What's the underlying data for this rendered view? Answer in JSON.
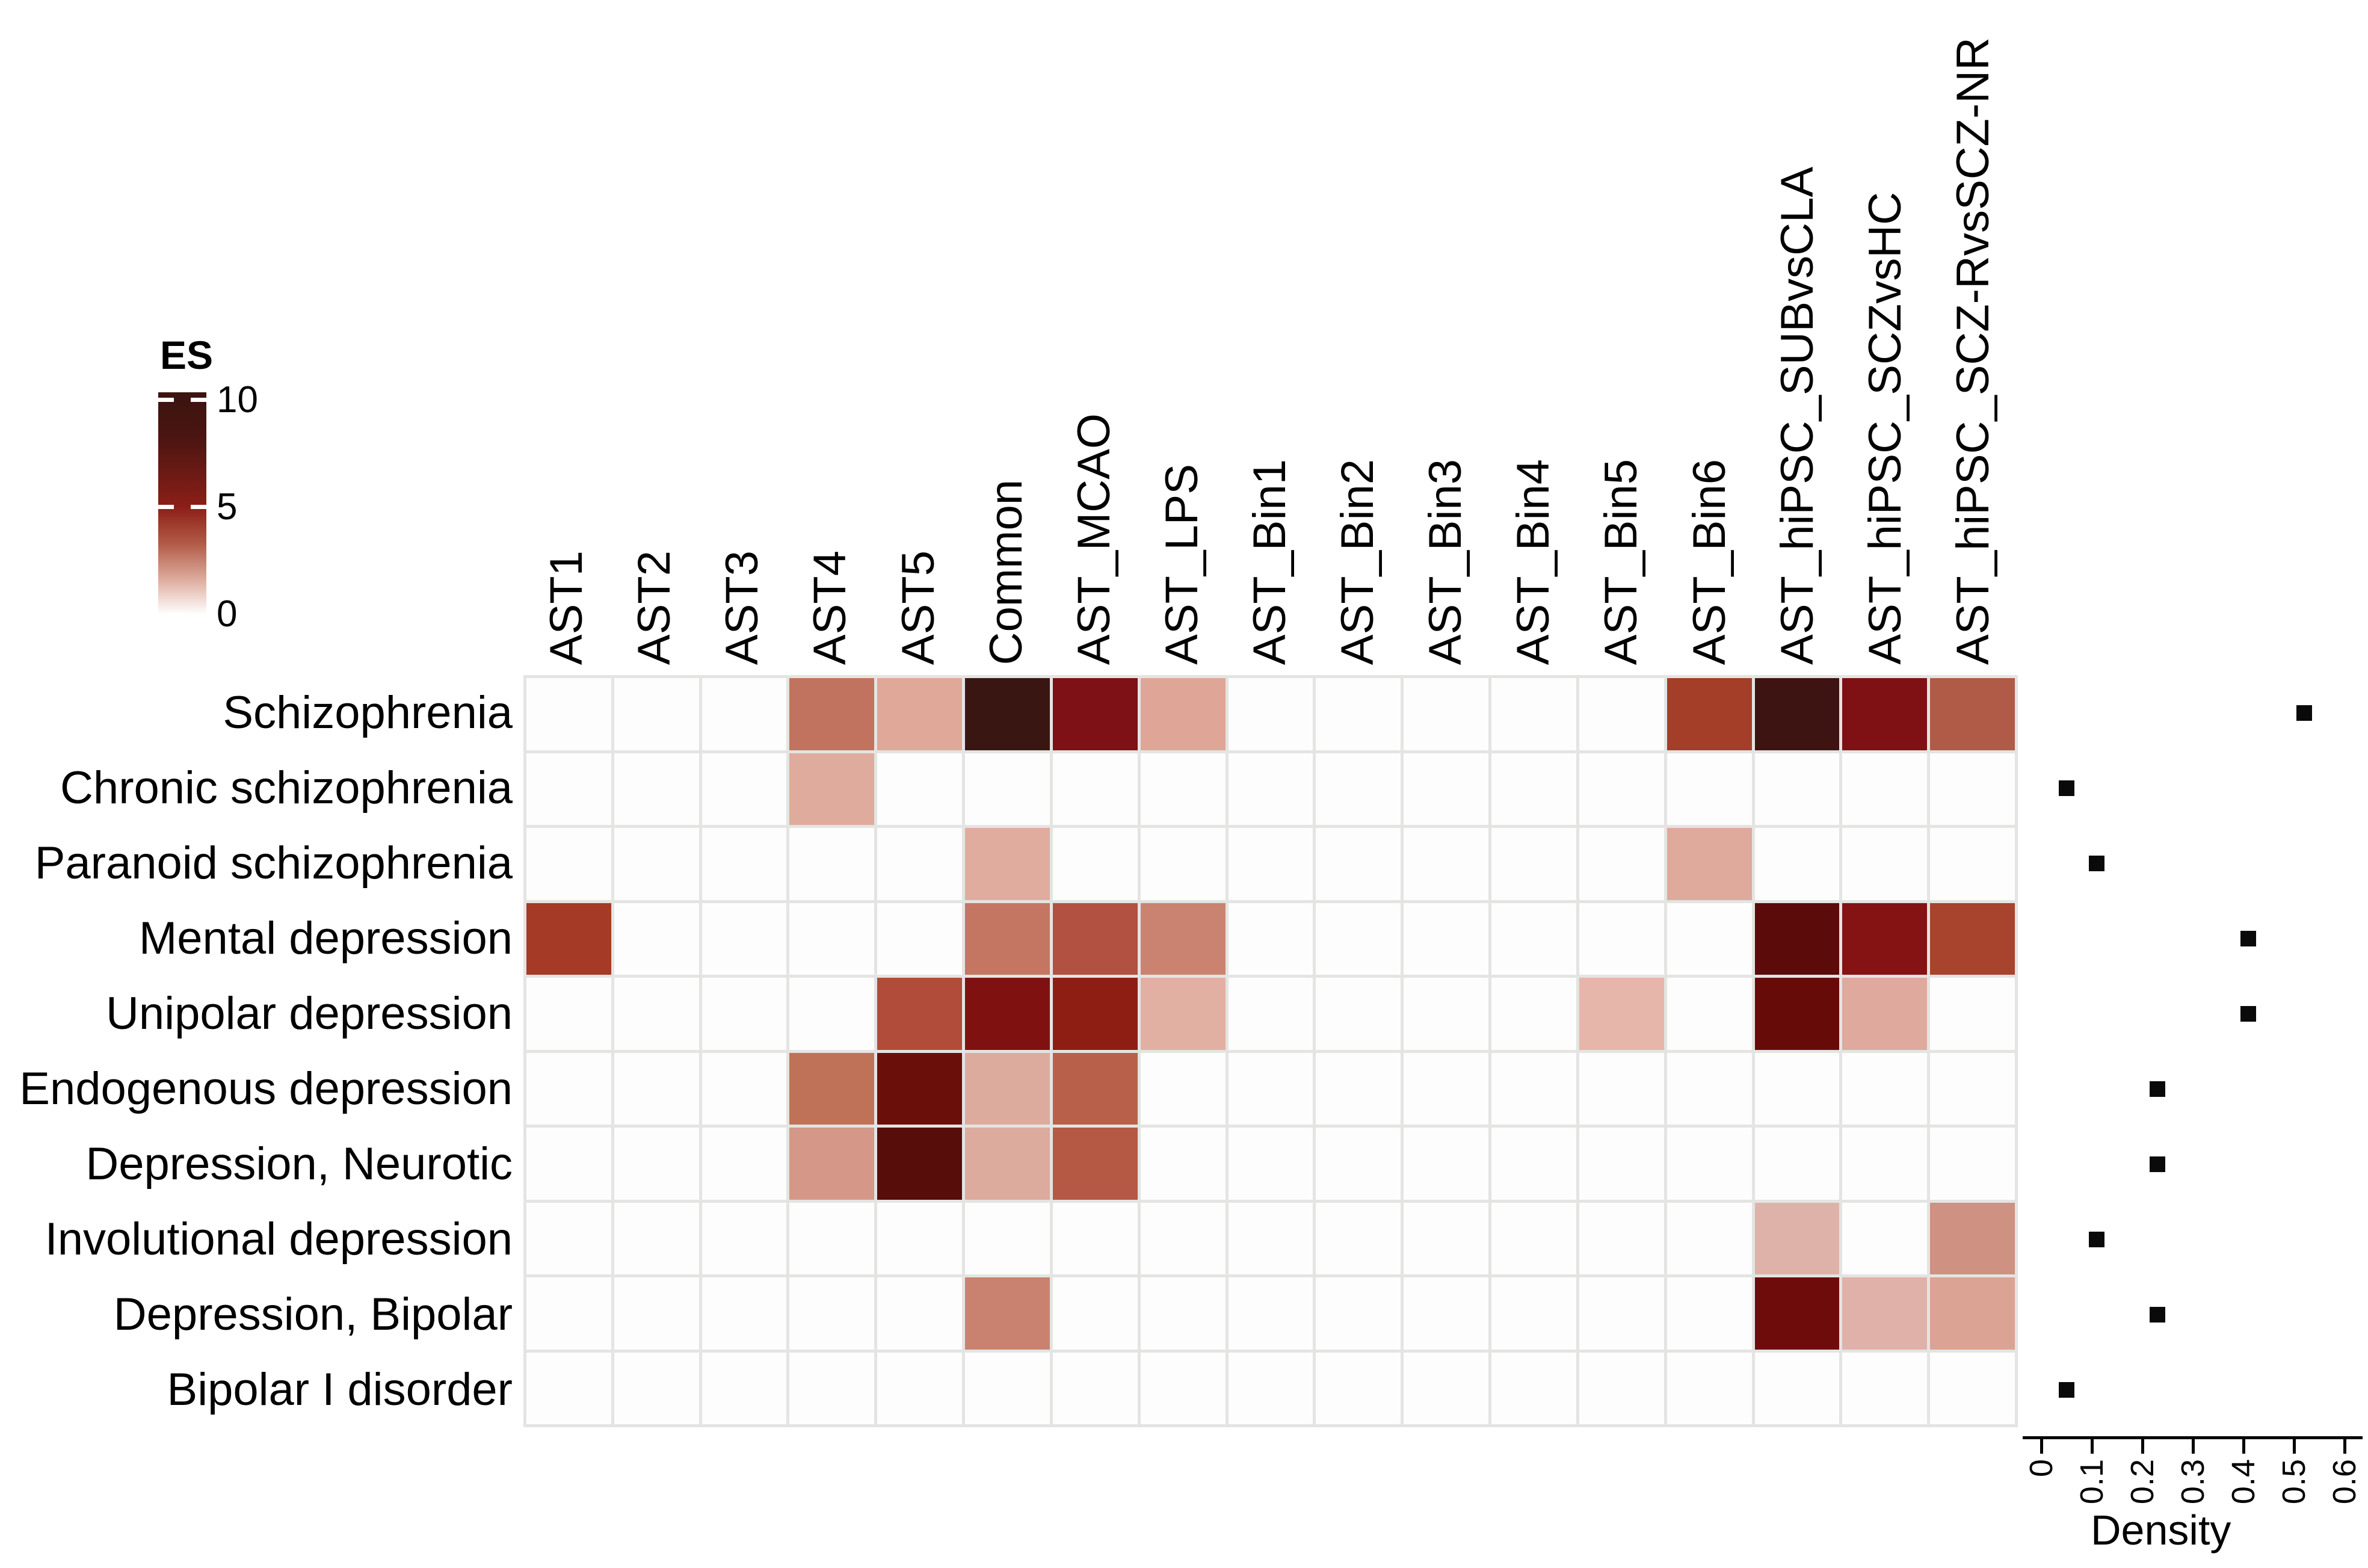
{
  "figure": {
    "description": "Heatmap of enrichment scores (ES) of astrocyte gene sets across psychiatric disease terms, with a per-disease density dot plot on the right",
    "background_color": "#ffffff",
    "grid_line_color": "#e4e4e2",
    "empty_cell_color": "#fdfdfd",
    "marker_color": "#0a0a0a"
  },
  "legend": {
    "title": "ES",
    "tick_labels": [
      "10",
      "5",
      "0"
    ]
  },
  "density": {
    "xlabel": "Density",
    "tick_labels": [
      "0",
      "0.1",
      "0.2",
      "0.3",
      "0.4",
      "0.5",
      "0.6"
    ]
  },
  "chart_data": [
    {
      "type": "heatmap",
      "legend_title": "ES",
      "legend_ticks": [
        {
          "label": "10",
          "value": 10,
          "pos_pct": 3.5
        },
        {
          "label": "5",
          "value": 5,
          "pos_pct": 51.8
        },
        {
          "label": "0",
          "value": 0,
          "pos_pct": 100
        }
      ],
      "colorscale": {
        "0": "#ffffff",
        "5": "#8c1f18",
        "10": "#3b1410"
      },
      "columns": [
        "AST1",
        "AST2",
        "AST3",
        "AST4",
        "AST5",
        "Common",
        "AST_MCAO",
        "AST_LPS",
        "AST_Bin1",
        "AST_Bin2",
        "AST_Bin3",
        "AST_Bin4",
        "AST_Bin5",
        "AST_Bin6",
        "AST_hiPSC_SUBvsCLA",
        "AST_hiPSC_SCZvsHC",
        "AST_hiPSC_SCZ-RvsSCZ-NR"
      ],
      "rows": [
        "Schizophrenia",
        "Chronic schizophrenia",
        "Paranoid schizophrenia",
        "Mental depression",
        "Unipolar depression",
        "Endogenous depression",
        "Depression, Neurotic",
        "Involutional depression",
        "Depression, Bipolar",
        "Bipolar I disorder"
      ],
      "cells": [
        {
          "row": 0,
          "col": 3,
          "es": 3.0,
          "color": "#c2735f"
        },
        {
          "row": 0,
          "col": 4,
          "es": 2.0,
          "color": "#e0a898"
        },
        {
          "row": 0,
          "col": 5,
          "es": 10.0,
          "color": "#3a1612"
        },
        {
          "row": 0,
          "col": 6,
          "es": 7.0,
          "color": "#7d1116"
        },
        {
          "row": 0,
          "col": 7,
          "es": 2.0,
          "color": "#dfa697"
        },
        {
          "row": 0,
          "col": 13,
          "es": 4.5,
          "color": "#a43e28"
        },
        {
          "row": 0,
          "col": 14,
          "es": 10.0,
          "color": "#3d1411"
        },
        {
          "row": 0,
          "col": 15,
          "es": 7.0,
          "color": "#7f1114"
        },
        {
          "row": 0,
          "col": 16,
          "es": 3.5,
          "color": "#b05a48"
        },
        {
          "row": 1,
          "col": 3,
          "es": 2.0,
          "color": "#dfab9d"
        },
        {
          "row": 2,
          "col": 5,
          "es": 2.0,
          "color": "#e0ac9e"
        },
        {
          "row": 2,
          "col": 13,
          "es": 2.0,
          "color": "#dfa99b"
        },
        {
          "row": 3,
          "col": 0,
          "es": 4.5,
          "color": "#a53b27"
        },
        {
          "row": 3,
          "col": 5,
          "es": 3.0,
          "color": "#c47662"
        },
        {
          "row": 3,
          "col": 6,
          "es": 3.8,
          "color": "#b25141"
        },
        {
          "row": 3,
          "col": 7,
          "es": 2.6,
          "color": "#ca8371"
        },
        {
          "row": 3,
          "col": 14,
          "es": 8.5,
          "color": "#5c0b0b"
        },
        {
          "row": 3,
          "col": 15,
          "es": 6.8,
          "color": "#851313"
        },
        {
          "row": 3,
          "col": 16,
          "es": 4.2,
          "color": "#a8432e"
        },
        {
          "row": 4,
          "col": 4,
          "es": 4.0,
          "color": "#b04c39"
        },
        {
          "row": 4,
          "col": 5,
          "es": 7.0,
          "color": "#7f1210"
        },
        {
          "row": 4,
          "col": 6,
          "es": 6.5,
          "color": "#8e1e14"
        },
        {
          "row": 4,
          "col": 7,
          "es": 1.6,
          "color": "#e2b0a2"
        },
        {
          "row": 4,
          "col": 12,
          "es": 1.4,
          "color": "#e6b6aa"
        },
        {
          "row": 4,
          "col": 14,
          "es": 8.0,
          "color": "#670b09"
        },
        {
          "row": 4,
          "col": 15,
          "es": 2.0,
          "color": "#dfa99e"
        },
        {
          "row": 5,
          "col": 3,
          "es": 3.0,
          "color": "#c07258"
        },
        {
          "row": 5,
          "col": 4,
          "es": 7.8,
          "color": "#6a0f0a"
        },
        {
          "row": 5,
          "col": 5,
          "es": 2.0,
          "color": "#dcab9d"
        },
        {
          "row": 5,
          "col": 6,
          "es": 3.5,
          "color": "#b8604a"
        },
        {
          "row": 6,
          "col": 3,
          "es": 2.2,
          "color": "#d59888"
        },
        {
          "row": 6,
          "col": 4,
          "es": 9.0,
          "color": "#570d09"
        },
        {
          "row": 6,
          "col": 5,
          "es": 2.0,
          "color": "#dcab9e"
        },
        {
          "row": 6,
          "col": 6,
          "es": 3.7,
          "color": "#b55944"
        },
        {
          "row": 7,
          "col": 14,
          "es": 1.5,
          "color": "#dfb2a9"
        },
        {
          "row": 7,
          "col": 16,
          "es": 2.4,
          "color": "#cf9181"
        },
        {
          "row": 8,
          "col": 5,
          "es": 2.6,
          "color": "#ca8270"
        },
        {
          "row": 8,
          "col": 14,
          "es": 7.5,
          "color": "#6e0c0c"
        },
        {
          "row": 8,
          "col": 15,
          "es": 1.7,
          "color": "#e0b1a8"
        },
        {
          "row": 8,
          "col": 16,
          "es": 2.0,
          "color": "#dba393"
        }
      ]
    },
    {
      "type": "scatter",
      "xlabel": "Density",
      "xlim": [
        0,
        0.6
      ],
      "xticks": [
        "0",
        "0.1",
        "0.2",
        "0.3",
        "0.4",
        "0.5",
        "0.6"
      ],
      "marker": "square",
      "legend_position": "none",
      "categories": [
        "Schizophrenia",
        "Chronic schizophrenia",
        "Paranoid schizophrenia",
        "Mental depression",
        "Unipolar depression",
        "Endogenous depression",
        "Depression, Neurotic",
        "Involutional depression",
        "Depression, Bipolar",
        "Bipolar I disorder"
      ],
      "values": [
        0.52,
        0.05,
        0.11,
        0.41,
        0.41,
        0.23,
        0.23,
        0.11,
        0.23,
        0.05
      ]
    }
  ]
}
